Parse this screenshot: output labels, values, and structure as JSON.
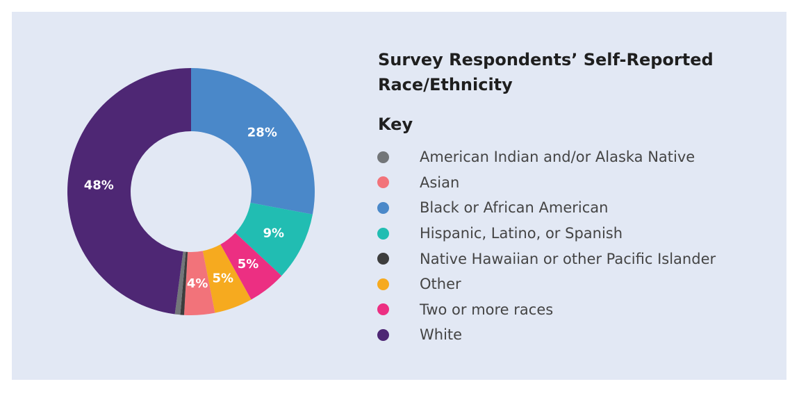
{
  "chart_data": {
    "type": "pie",
    "title": "Survey Respondents’ Self-Reported Race/Ethnicity",
    "legend_title": "Key",
    "legend_position": "right",
    "categories": [
      "Black or African American",
      "Hispanic, Latino, or Spanish",
      "Two or more races",
      "Other",
      "Asian",
      "Native Hawaiian or other Pacific Islander",
      "American Indian and/or Alaska Native",
      "White"
    ],
    "values": [
      28,
      9,
      5,
      5,
      4,
      0.5,
      0.7,
      48
    ],
    "data_labels": [
      "28%",
      "9%",
      "5%",
      "5%",
      "4%",
      "",
      "",
      "48%"
    ],
    "colors": [
      "#4a88c9",
      "#21bdb2",
      "#ec2f82",
      "#f6aa1f",
      "#f2737a",
      "#3d3d3d",
      "#737679",
      "#4e2774"
    ]
  },
  "legend": [
    {
      "label": "American Indian and/or Alaska Native",
      "color": "#737679"
    },
    {
      "label": "Asian",
      "color": "#f2737a"
    },
    {
      "label": "Black or African American",
      "color": "#4a88c9"
    },
    {
      "label": "Hispanic, Latino, or Spanish",
      "color": "#21bdb2"
    },
    {
      "label": "Native Hawaiian or other Pacific Islander",
      "color": "#3d3d3d"
    },
    {
      "label": "Other",
      "color": "#f6aa1f"
    },
    {
      "label": "Two or more races",
      "color": "#ec2f82"
    },
    {
      "label": "White",
      "color": "#4e2774"
    }
  ]
}
